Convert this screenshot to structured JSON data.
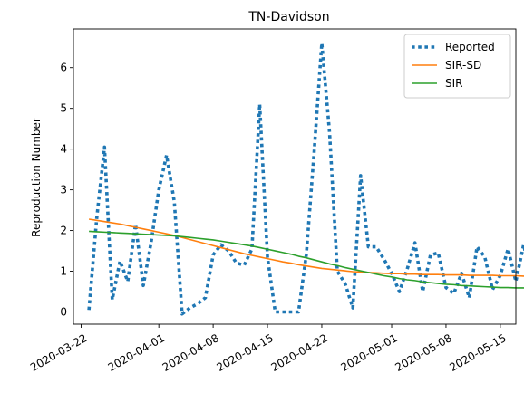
{
  "chart_data": {
    "type": "line",
    "title": "TN-Davidson",
    "ylabel": "Reproduction Number",
    "xlabel": "",
    "x_start": "2020-03-23",
    "x_end": "2020-05-15",
    "xlim": [
      "2020-03-21",
      "2020-05-17"
    ],
    "ylim": [
      -0.3,
      6.95
    ],
    "xticks": [
      "2020-03-22",
      "2020-04-01",
      "2020-04-08",
      "2020-04-15",
      "2020-04-22",
      "2020-05-01",
      "2020-05-08",
      "2020-05-15"
    ],
    "yticks": [
      0,
      1,
      2,
      3,
      4,
      5,
      6
    ],
    "legend_position": "top-right",
    "grid": false,
    "series": [
      {
        "name": "Reported",
        "style": "dotted",
        "color": "#1f77b4",
        "values": [
          0.05,
          2.3,
          4.05,
          0.3,
          1.25,
          0.75,
          2.15,
          0.65,
          1.7,
          3.0,
          3.85,
          2.7,
          -0.05,
          0.1,
          0.2,
          0.35,
          1.4,
          1.65,
          1.5,
          1.2,
          1.15,
          1.55,
          5.1,
          1.35,
          0.0,
          0.0,
          0.0,
          0.0,
          1.4,
          3.9,
          6.6,
          4.4,
          1.0,
          0.7,
          0.1,
          3.35,
          1.6,
          1.6,
          1.3,
          0.95,
          0.5,
          1.05,
          1.7,
          0.5,
          1.4,
          1.45,
          0.6,
          0.45,
          0.95,
          0.35,
          1.6,
          1.35,
          0.55,
          0.9,
          1.55,
          0.75,
          1.65,
          0.85
        ]
      },
      {
        "name": "SIR-SD",
        "style": "solid",
        "color": "#ff7f0e",
        "values": [
          2.28,
          2.25,
          2.22,
          2.19,
          2.16,
          2.12,
          2.08,
          2.04,
          2.0,
          1.96,
          1.92,
          1.88,
          1.83,
          1.78,
          1.73,
          1.68,
          1.63,
          1.58,
          1.53,
          1.48,
          1.43,
          1.39,
          1.35,
          1.31,
          1.27,
          1.23,
          1.2,
          1.16,
          1.13,
          1.1,
          1.07,
          1.05,
          1.03,
          1.01,
          0.99,
          0.98,
          0.97,
          0.96,
          0.95,
          0.94,
          0.94,
          0.93,
          0.93,
          0.92,
          0.92,
          0.92,
          0.91,
          0.91,
          0.91,
          0.9,
          0.9,
          0.9,
          0.9,
          0.89,
          0.89,
          0.89,
          0.88,
          0.88
        ]
      },
      {
        "name": "SIR",
        "style": "solid",
        "color": "#2ca02c",
        "values": [
          1.98,
          1.97,
          1.96,
          1.95,
          1.94,
          1.93,
          1.92,
          1.91,
          1.9,
          1.89,
          1.88,
          1.87,
          1.85,
          1.83,
          1.81,
          1.79,
          1.77,
          1.74,
          1.71,
          1.68,
          1.65,
          1.62,
          1.58,
          1.54,
          1.5,
          1.46,
          1.42,
          1.37,
          1.33,
          1.28,
          1.23,
          1.18,
          1.14,
          1.09,
          1.05,
          1.01,
          0.97,
          0.93,
          0.89,
          0.86,
          0.82,
          0.79,
          0.77,
          0.74,
          0.72,
          0.7,
          0.68,
          0.67,
          0.65,
          0.64,
          0.63,
          0.62,
          0.61,
          0.6,
          0.6,
          0.59,
          0.59,
          0.58
        ]
      }
    ]
  }
}
